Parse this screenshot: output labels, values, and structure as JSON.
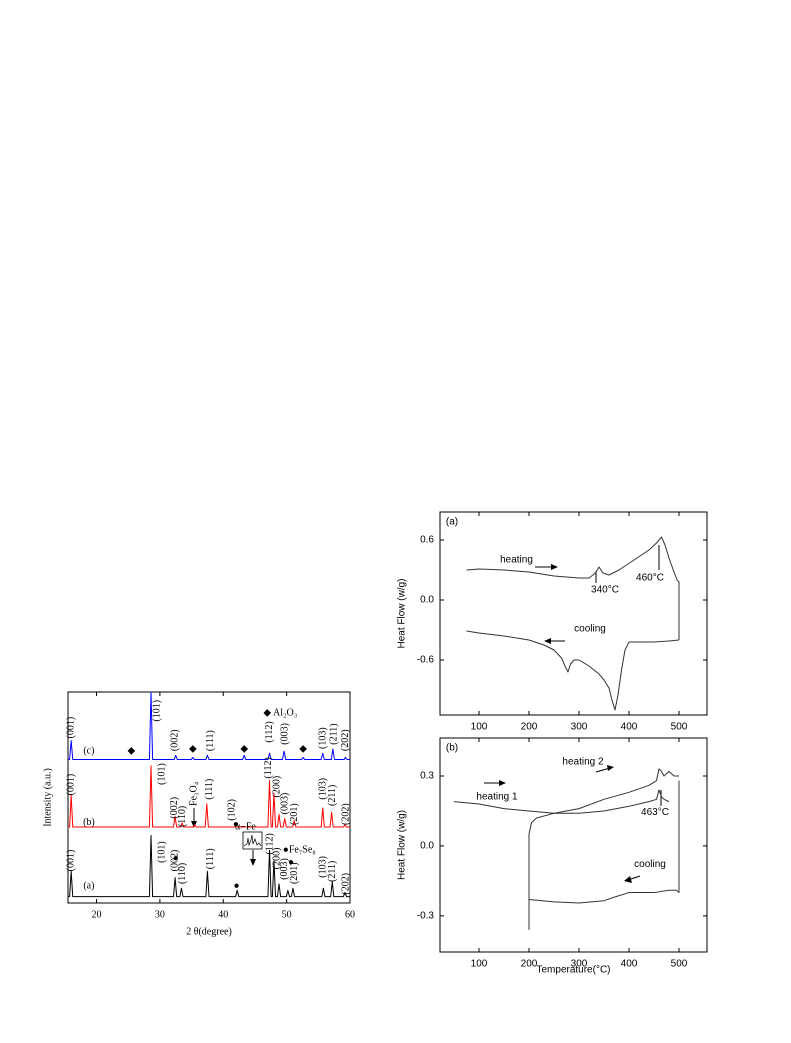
{
  "chart_data": [
    {
      "type": "line",
      "xlabel": "2 θ(degree)",
      "ylabel": "Intensity (a.u.)",
      "xlim": [
        15.5,
        60
      ],
      "ylim": [
        0,
        100
      ],
      "xticks": [
        20,
        30,
        40,
        50,
        60
      ],
      "series": [
        {
          "color": "#000000",
          "x": [
            15.5,
            15.75,
            16,
            16.25,
            28.35,
            28.6,
            28.85,
            32.15,
            32.4,
            32.65,
            33.15,
            33.4,
            33.65,
            37.25,
            37.5,
            37.75,
            41.95,
            42.2,
            42.45,
            47.05,
            47.3,
            47.55,
            47.75,
            48.0,
            48.25,
            48.55,
            48.8,
            49.05,
            49.95,
            50.2,
            50.45,
            50.75,
            51.0,
            51.25,
            55.55,
            55.8,
            56.05,
            56.95,
            57.2,
            57.45,
            58.95,
            59.2,
            59.45,
            60
          ],
          "values": [
            3,
            3,
            15,
            3,
            3,
            32,
            3,
            3,
            12,
            3,
            3,
            7,
            3,
            3,
            15,
            3,
            3,
            6,
            3,
            3,
            25,
            3,
            3,
            20,
            3,
            3,
            9,
            3,
            3,
            6,
            3,
            3,
            7,
            3,
            3,
            7,
            3,
            3,
            10,
            3,
            3,
            5,
            3,
            3
          ]
        },
        {
          "color": "#ff0000",
          "x": [
            15.5,
            15.75,
            16,
            16.25,
            28.35,
            28.6,
            28.85,
            32.15,
            32.4,
            32.65,
            33.25,
            33.5,
            33.75,
            35.25,
            35.5,
            35.75,
            37.15,
            37.4,
            37.65,
            41.75,
            42,
            42.25,
            47.05,
            47.3,
            47.55,
            47.75,
            48,
            48.25,
            48.55,
            48.8,
            49.05,
            49.45,
            49.7,
            49.95,
            50.95,
            51.2,
            51.45,
            55.45,
            55.7,
            55.95,
            56.85,
            57.1,
            57.35,
            58.95,
            59.2,
            59.45,
            60
          ],
          "values": [
            36,
            36,
            51,
            36,
            36,
            65,
            36,
            36,
            41,
            36,
            36,
            38,
            36,
            36,
            37,
            36,
            36,
            47,
            36,
            36,
            37,
            36,
            36,
            58,
            36,
            36,
            52,
            36,
            36,
            42,
            36,
            36,
            40,
            36,
            36,
            39,
            36,
            36,
            45,
            36,
            36,
            43,
            36,
            36,
            37,
            36,
            36
          ]
        },
        {
          "color": "#0000ff",
          "x": [
            15.5,
            15.75,
            16,
            16.25,
            28.35,
            28.6,
            28.85,
            32.25,
            32.5,
            32.75,
            34.95,
            35.2,
            35.45,
            37.25,
            37.5,
            37.75,
            43.05,
            43.3,
            43.55,
            47.05,
            47.3,
            47.55,
            49.35,
            49.6,
            49.85,
            52.35,
            52.6,
            52.85,
            55.45,
            55.7,
            55.95,
            57.05,
            57.3,
            57.55,
            59.05,
            59.3,
            59.55,
            60
          ],
          "values": [
            68,
            68,
            77,
            68,
            68,
            100,
            68,
            68,
            70,
            68,
            68,
            69,
            68,
            68,
            70,
            68,
            68,
            70,
            68,
            68,
            71,
            68,
            68,
            72,
            68,
            68,
            69,
            68,
            68,
            71,
            68,
            68,
            73,
            68,
            68,
            69,
            68,
            68
          ]
        }
      ],
      "peak_labels": [
        {
          "text": "(001)",
          "x": 16,
          "y": 78
        },
        {
          "text": "(101)",
          "x": 29.6,
          "y": 86
        },
        {
          "text": "(002)",
          "x": 32.4,
          "y": 72
        },
        {
          "text": "(111)",
          "x": 38,
          "y": 72
        },
        {
          "text": "(112)",
          "x": 47.3,
          "y": 76
        },
        {
          "text": "(003)",
          "x": 49.8,
          "y": 75
        },
        {
          "text": "(103)",
          "x": 55.8,
          "y": 73
        },
        {
          "text": "(211)",
          "x": 57.5,
          "y": 75
        },
        {
          "text": "(202)",
          "x": 59.3,
          "y": 72
        },
        {
          "text": "(001)",
          "x": 16,
          "y": 51
        },
        {
          "text": "(101)",
          "x": 30.4,
          "y": 56
        },
        {
          "text": "(002)",
          "x": 32.3,
          "y": 40
        },
        {
          "text": "(110)",
          "x": 33.6,
          "y": 36
        },
        {
          "text": "Fe₃O₄",
          "x": 35.4,
          "y": 46
        },
        {
          "text": "(111)",
          "x": 37.9,
          "y": 49
        },
        {
          "text": "(102)",
          "x": 41.4,
          "y": 39
        },
        {
          "text": "(112)",
          "x": 47.2,
          "y": 59
        },
        {
          "text": "(200)",
          "x": 48.5,
          "y": 50
        },
        {
          "text": "(003)",
          "x": 49.8,
          "y": 42
        },
        {
          "text": "(201)",
          "x": 51.3,
          "y": 37
        },
        {
          "text": "(103)",
          "x": 55.8,
          "y": 49
        },
        {
          "text": "(211)",
          "x": 57.3,
          "y": 46
        },
        {
          "text": "(202)",
          "x": 59.4,
          "y": 37
        },
        {
          "text": "(001)",
          "x": 16,
          "y": 15
        },
        {
          "text": "(101)",
          "x": 30.4,
          "y": 19
        },
        {
          "text": "(002)",
          "x": 32.4,
          "y": 15
        },
        {
          "text": "(110)",
          "x": 33.6,
          "y": 9
        },
        {
          "text": "(111)",
          "x": 38,
          "y": 16
        },
        {
          "text": "(112)",
          "x": 47.4,
          "y": 23
        },
        {
          "text": "(200)",
          "x": 48.5,
          "y": 16
        },
        {
          "text": "(003)",
          "x": 49.7,
          "y": 11
        },
        {
          "text": "(201)",
          "x": 51.3,
          "y": 9
        },
        {
          "text": "(103)",
          "x": 55.8,
          "y": 12
        },
        {
          "text": "(211)",
          "x": 57.3,
          "y": 10
        },
        {
          "text": "(202)",
          "x": 59.4,
          "y": 4
        }
      ],
      "annotations": [
        {
          "text": "(c)",
          "x": 18.8,
          "y": 72
        },
        {
          "text": "(b)",
          "x": 18.8,
          "y": 38
        },
        {
          "text": "(a)",
          "x": 18.8,
          "y": 8
        },
        {
          "text": "◆  Al₂O₃",
          "x": 49,
          "y": 90
        },
        {
          "text": "●Fe₇Se₈",
          "x": 52,
          "y": 25
        },
        {
          "text": "α−Fe",
          "x": 43.5,
          "y": 36
        },
        {
          "text": "◆",
          "x": 25.5,
          "y": 72
        },
        {
          "text": "◆",
          "x": 35.2,
          "y": 73
        },
        {
          "text": "◆",
          "x": 43.3,
          "y": 73
        },
        {
          "text": "◆",
          "x": 52.6,
          "y": 73
        },
        {
          "text": "●",
          "x": 32.5,
          "y": 21
        },
        {
          "text": "●",
          "x": 42.1,
          "y": 8
        },
        {
          "text": "●",
          "x": 50.7,
          "y": 19
        },
        {
          "text": "●",
          "x": 42,
          "y": 37
        }
      ]
    },
    {
      "type": "line",
      "ylabel": "Heat Flow (w/g)",
      "xlim": [
        22,
        556
      ],
      "ylim": [
        -1.15,
        0.88
      ],
      "xticks": [
        100,
        200,
        300,
        400,
        500
      ],
      "yticks": [
        -0.6,
        {
          "value": 0,
          "label": "0.0"
        },
        0.6
      ],
      "series": [
        {
          "color": "#333333",
          "x": [
            75,
            100,
            150,
            200,
            250,
            300,
            320,
            333,
            340,
            348,
            360,
            380,
            410,
            440,
            455,
            465,
            472,
            480,
            490,
            496,
            500,
            500
          ],
          "values": [
            0.3,
            0.31,
            0.3,
            0.28,
            0.24,
            0.22,
            0.22,
            0.27,
            0.33,
            0.27,
            0.25,
            0.3,
            0.4,
            0.5,
            0.57,
            0.63,
            0.55,
            0.42,
            0.28,
            0.2,
            0.18,
            -0.4
          ]
        },
        {
          "color": "#333333",
          "x": [
            500,
            480,
            450,
            420,
            400,
            392,
            385,
            378,
            372,
            366,
            360,
            350,
            340,
            320,
            300,
            290,
            283,
            278,
            272,
            265,
            250,
            230,
            200,
            150,
            100,
            75
          ],
          "values": [
            -0.4,
            -0.41,
            -0.42,
            -0.42,
            -0.42,
            -0.5,
            -0.7,
            -0.95,
            -1.1,
            -1.0,
            -0.88,
            -0.8,
            -0.74,
            -0.66,
            -0.6,
            -0.6,
            -0.64,
            -0.72,
            -0.66,
            -0.58,
            -0.5,
            -0.45,
            -0.4,
            -0.36,
            -0.33,
            -0.31
          ]
        }
      ],
      "annotations": [
        {
          "text": "(a)",
          "x": 46,
          "y": 0.78
        },
        {
          "text": "heating",
          "x": 175,
          "y": 0.4
        },
        {
          "text": "cooling",
          "x": 322,
          "y": -0.29
        },
        {
          "text": "340°C",
          "x": 352,
          "y": 0.1
        },
        {
          "text": "460°C",
          "x": 442,
          "y": 0.22
        }
      ]
    },
    {
      "type": "line",
      "xlabel": "Temperature(°C)",
      "ylabel": "Heat Flow (w/g)",
      "xlim": [
        22,
        556
      ],
      "ylim": [
        -0.455,
        0.463
      ],
      "xticks": [
        100,
        200,
        300,
        400,
        500
      ],
      "yticks": [
        -0.3,
        {
          "value": 0,
          "label": "0.0"
        },
        0.3
      ],
      "series": [
        {
          "color": "#333333",
          "x": [
            50,
            100,
            150,
            200,
            250,
            300,
            350,
            400,
            440,
            455,
            460,
            465,
            470,
            480
          ],
          "values": [
            0.19,
            0.18,
            0.16,
            0.15,
            0.14,
            0.14,
            0.15,
            0.17,
            0.19,
            0.2,
            0.24,
            0.21,
            0.2,
            0.19
          ]
        },
        {
          "color": "#333333",
          "x": [
            200,
            200,
            205,
            215,
            250,
            300,
            350,
            400,
            440,
            455,
            460,
            465,
            470,
            480,
            490,
            500
          ],
          "values": [
            -0.36,
            0.05,
            0.1,
            0.12,
            0.14,
            0.16,
            0.2,
            0.23,
            0.26,
            0.28,
            0.33,
            0.32,
            0.3,
            0.32,
            0.3,
            0.3
          ]
        },
        {
          "color": "#333333",
          "x": [
            500,
            500,
            495,
            480,
            450,
            400,
            370,
            350,
            300,
            250,
            200
          ],
          "values": [
            0.28,
            -0.2,
            -0.19,
            -0.19,
            -0.2,
            -0.2,
            -0.22,
            -0.235,
            -0.245,
            -0.24,
            -0.23
          ]
        }
      ],
      "annotations": [
        {
          "text": "(b)",
          "x": 46,
          "y": 0.42
        },
        {
          "text": "heating 2",
          "x": 308,
          "y": 0.36
        },
        {
          "text": "heating 1",
          "x": 136,
          "y": 0.21
        },
        {
          "text": "463°C",
          "x": 452,
          "y": 0.145
        },
        {
          "text": "cooling",
          "x": 442,
          "y": -0.078
        }
      ]
    }
  ]
}
